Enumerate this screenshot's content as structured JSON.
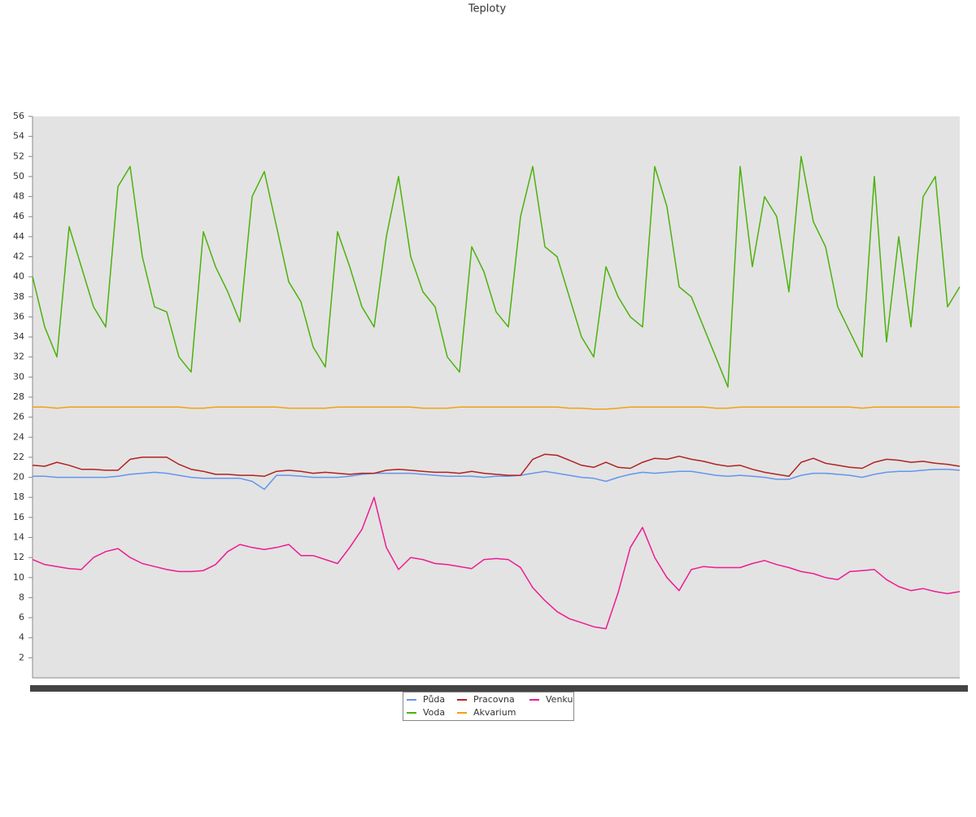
{
  "chart_data": {
    "type": "line",
    "title": "Teploty",
    "ylim": [
      0,
      56
    ],
    "yticks": [
      2,
      4,
      6,
      8,
      10,
      12,
      14,
      16,
      18,
      20,
      22,
      24,
      26,
      28,
      30,
      32,
      34,
      36,
      38,
      40,
      42,
      44,
      46,
      48,
      50,
      52,
      54,
      56
    ],
    "series": [
      {
        "name": "Půda",
        "color": "#6495ed",
        "values": [
          20.1,
          20.1,
          20.0,
          20.0,
          20.0,
          20.0,
          20.0,
          20.1,
          20.3,
          20.4,
          20.5,
          20.4,
          20.2,
          20.0,
          19.9,
          19.9,
          19.9,
          19.9,
          19.6,
          18.8,
          20.2,
          20.2,
          20.1,
          20.0,
          20.0,
          20.0,
          20.1,
          20.3,
          20.4,
          20.4,
          20.4,
          20.4,
          20.3,
          20.2,
          20.1,
          20.1,
          20.1,
          20.0,
          20.1,
          20.1,
          20.2,
          20.4,
          20.6,
          20.4,
          20.2,
          20.0,
          19.9,
          19.6,
          20.0,
          20.3,
          20.5,
          20.4,
          20.5,
          20.6,
          20.6,
          20.4,
          20.2,
          20.1,
          20.2,
          20.1,
          20.0,
          19.8,
          19.8,
          20.2,
          20.4,
          20.4,
          20.3,
          20.2,
          20.0,
          20.3,
          20.5,
          20.6,
          20.6,
          20.7,
          20.8,
          20.8,
          20.7
        ]
      },
      {
        "name": "Voda",
        "color": "#4cb20c",
        "values": [
          40,
          35,
          32,
          45,
          41,
          37,
          35,
          49,
          51,
          42,
          37,
          36.5,
          32,
          30.5,
          44.5,
          41,
          38.5,
          35.5,
          48,
          50.5,
          45,
          39.5,
          37.5,
          33,
          31,
          44.5,
          41,
          37,
          35,
          44,
          50,
          42,
          38.5,
          37,
          32,
          30.5,
          43,
          40.5,
          36.5,
          35,
          46,
          51,
          43,
          42,
          38,
          34,
          32,
          41,
          38,
          36,
          35,
          51,
          47,
          39,
          38,
          35,
          32,
          29,
          51,
          41,
          48,
          46,
          38.5,
          52,
          45.5,
          43,
          37,
          34.5,
          32,
          50,
          33.5,
          44,
          35,
          48,
          50,
          37,
          39
        ]
      },
      {
        "name": "Pracovna",
        "color": "#b22222",
        "values": [
          21.2,
          21.1,
          21.5,
          21.2,
          20.8,
          20.8,
          20.7,
          20.7,
          21.8,
          22,
          22,
          22,
          21.3,
          20.8,
          20.6,
          20.3,
          20.3,
          20.2,
          20.2,
          20.1,
          20.6,
          20.7,
          20.6,
          20.4,
          20.5,
          20.4,
          20.3,
          20.4,
          20.4,
          20.7,
          20.8,
          20.7,
          20.6,
          20.5,
          20.5,
          20.4,
          20.6,
          20.4,
          20.3,
          20.2,
          20.2,
          21.8,
          22.3,
          22.2,
          21.7,
          21.2,
          21,
          21.5,
          21,
          20.9,
          21.5,
          21.9,
          21.8,
          22.1,
          21.8,
          21.6,
          21.3,
          21.1,
          21.2,
          20.8,
          20.5,
          20.3,
          20.1,
          21.5,
          21.9,
          21.4,
          21.2,
          21,
          20.9,
          21.5,
          21.8,
          21.7,
          21.5,
          21.6,
          21.4,
          21.3,
          21.1
        ]
      },
      {
        "name": "Akvarium",
        "color": "#f5a00f",
        "values": [
          27,
          27,
          26.9,
          27,
          27,
          27,
          27,
          27,
          27,
          27,
          27,
          27,
          27,
          26.9,
          26.9,
          27,
          27,
          27,
          27,
          27,
          27,
          26.9,
          26.9,
          26.9,
          26.9,
          27,
          27,
          27,
          27,
          27,
          27,
          27,
          26.9,
          26.9,
          26.9,
          27,
          27,
          27,
          27,
          27,
          27,
          27,
          27,
          27,
          26.9,
          26.9,
          26.8,
          26.8,
          26.9,
          27,
          27,
          27,
          27,
          27,
          27,
          27,
          26.9,
          26.9,
          27,
          27,
          27,
          27,
          27,
          27,
          27,
          27,
          27,
          27,
          26.9,
          27,
          27,
          27,
          27,
          27,
          27,
          27,
          27
        ]
      },
      {
        "name": "Venku",
        "color": "#ee1c93",
        "values": [
          11.8,
          11.3,
          11.1,
          10.9,
          10.8,
          12,
          12.6,
          12.9,
          12,
          11.4,
          11.1,
          10.8,
          10.6,
          10.6,
          10.7,
          11.3,
          12.6,
          13.3,
          13,
          12.8,
          13,
          13.3,
          12.2,
          12.2,
          11.8,
          11.4,
          13,
          14.8,
          18,
          13,
          10.8,
          12,
          11.8,
          11.4,
          11.3,
          11.1,
          10.9,
          11.8,
          11.9,
          11.8,
          11,
          9,
          7.7,
          6.6,
          5.9,
          5.5,
          5.1,
          4.9,
          8.5,
          13,
          15,
          12,
          10,
          8.7,
          10.8,
          11.1,
          11,
          11,
          11,
          11.4,
          11.7,
          11.3,
          11,
          10.6,
          10.4,
          10,
          9.8,
          10.6,
          10.7,
          10.8,
          9.8,
          9.1,
          8.7,
          8.9,
          8.6,
          8.4,
          8.6
        ]
      }
    ]
  }
}
